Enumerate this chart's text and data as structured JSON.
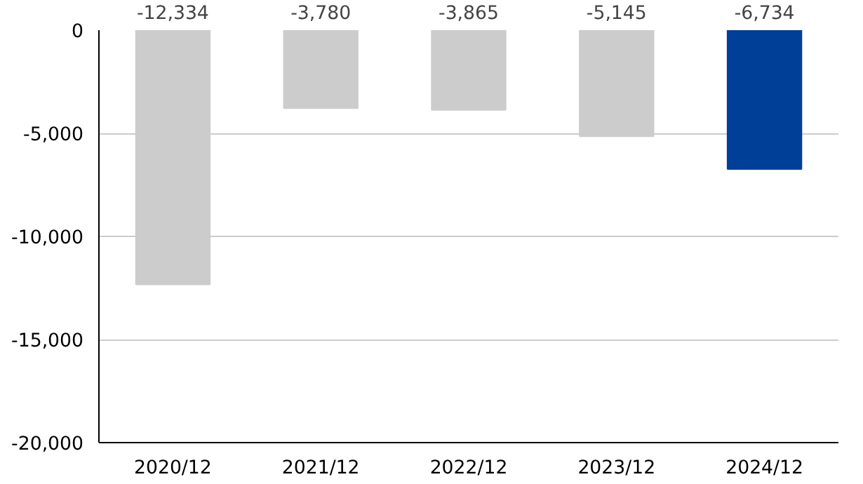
{
  "chart_data": {
    "type": "bar",
    "categories": [
      "2020/12",
      "2021/12",
      "2022/12",
      "2023/12",
      "2024/12"
    ],
    "values": [
      -12334,
      -3780,
      -3865,
      -5145,
      -6734
    ],
    "colors": [
      "#cccccc",
      "#cccccc",
      "#cccccc",
      "#cccccc",
      "#003f98"
    ],
    "value_labels": [
      "-12,334",
      "-3,780",
      "-3,865",
      "-5,145",
      "-6,734"
    ],
    "ylim": [
      -20000,
      0
    ],
    "yticks": [
      {
        "value": -20000,
        "label": "-20,000"
      },
      {
        "value": -15000,
        "label": "-15,000"
      },
      {
        "value": -10000,
        "label": "-10,000"
      },
      {
        "value": -5000,
        "label": "-5,000"
      },
      0
    ],
    "grid": "y"
  }
}
